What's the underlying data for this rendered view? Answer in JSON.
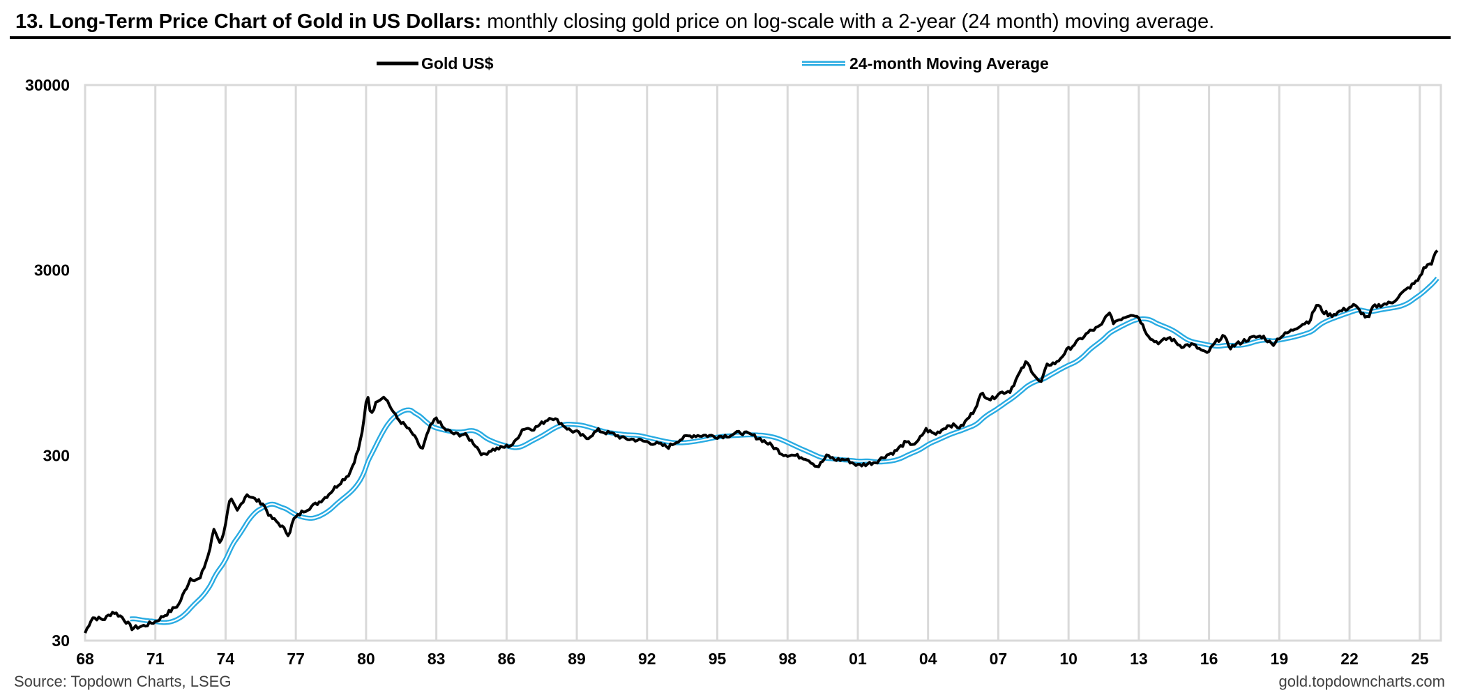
{
  "header": {
    "title_bold": "13. Long-Term Price Chart of Gold in US Dollars:",
    "title_rest": " monthly closing gold price on log-scale with a 2-year (24 month) moving average."
  },
  "footer": {
    "source": "Source: Topdown Charts, LSEG",
    "website": "gold.topdowncharts.com"
  },
  "chart_data": {
    "type": "line",
    "title": "13. Long-Term Price Chart of Gold in US Dollars: monthly closing gold price on log-scale with a 2-year (24 month) moving average.",
    "xlabel": "",
    "ylabel": "",
    "y_scale": "log",
    "ylim": [
      30,
      30000
    ],
    "xlim": [
      1968,
      2025.9
    ],
    "grid": "vertical lines every 3 years",
    "legend_position": "top",
    "y_ticks": [
      "30",
      "300",
      "3000",
      "30000"
    ],
    "x_ticks": [
      "68",
      "71",
      "74",
      "77",
      "80",
      "83",
      "86",
      "89",
      "92",
      "95",
      "98",
      "01",
      "04",
      "07",
      "10",
      "13",
      "16",
      "19",
      "22",
      "25"
    ],
    "colors": {
      "gold": "#000000",
      "moving_average": "#29abe2"
    },
    "series": [
      {
        "name": "Gold US$",
        "points": [
          [
            1968.0,
            33
          ],
          [
            1968.3,
            40
          ],
          [
            1968.8,
            39
          ],
          [
            1969.2,
            43
          ],
          [
            1969.6,
            40
          ],
          [
            1970.0,
            35
          ],
          [
            1970.5,
            36
          ],
          [
            1971.0,
            38
          ],
          [
            1971.5,
            42
          ],
          [
            1972.0,
            47
          ],
          [
            1972.5,
            65
          ],
          [
            1972.9,
            64
          ],
          [
            1973.3,
            90
          ],
          [
            1973.5,
            120
          ],
          [
            1973.8,
            100
          ],
          [
            1974.0,
            130
          ],
          [
            1974.2,
            175
          ],
          [
            1974.5,
            150
          ],
          [
            1974.9,
            186
          ],
          [
            1975.2,
            175
          ],
          [
            1975.6,
            165
          ],
          [
            1975.9,
            140
          ],
          [
            1976.3,
            128
          ],
          [
            1976.7,
            112
          ],
          [
            1976.9,
            135
          ],
          [
            1977.3,
            150
          ],
          [
            1977.9,
            165
          ],
          [
            1978.3,
            180
          ],
          [
            1978.9,
            215
          ],
          [
            1979.3,
            240
          ],
          [
            1979.7,
            330
          ],
          [
            1979.9,
            450
          ],
          [
            1980.05,
            650
          ],
          [
            1980.2,
            500
          ],
          [
            1980.5,
            600
          ],
          [
            1980.8,
            630
          ],
          [
            1981.0,
            560
          ],
          [
            1981.3,
            480
          ],
          [
            1981.7,
            430
          ],
          [
            1982.0,
            390
          ],
          [
            1982.4,
            320
          ],
          [
            1982.7,
            420
          ],
          [
            1983.0,
            480
          ],
          [
            1983.3,
            420
          ],
          [
            1983.8,
            390
          ],
          [
            1984.2,
            390
          ],
          [
            1984.6,
            350
          ],
          [
            1985.0,
            300
          ],
          [
            1985.3,
            320
          ],
          [
            1985.8,
            330
          ],
          [
            1986.3,
            345
          ],
          [
            1986.7,
            420
          ],
          [
            1987.2,
            420
          ],
          [
            1987.9,
            485
          ],
          [
            1988.3,
            450
          ],
          [
            1988.7,
            410
          ],
          [
            1989.0,
            400
          ],
          [
            1989.4,
            370
          ],
          [
            1989.9,
            410
          ],
          [
            1990.2,
            400
          ],
          [
            1990.6,
            390
          ],
          [
            1991.0,
            370
          ],
          [
            1991.5,
            365
          ],
          [
            1992.0,
            355
          ],
          [
            1992.5,
            345
          ],
          [
            1992.9,
            333
          ],
          [
            1993.3,
            360
          ],
          [
            1993.7,
            380
          ],
          [
            1994.0,
            385
          ],
          [
            1994.5,
            385
          ],
          [
            1995.0,
            380
          ],
          [
            1995.5,
            385
          ],
          [
            1996.0,
            400
          ],
          [
            1996.5,
            385
          ],
          [
            1996.9,
            365
          ],
          [
            1997.3,
            340
          ],
          [
            1997.8,
            305
          ],
          [
            1998.3,
            300
          ],
          [
            1998.8,
            290
          ],
          [
            1999.3,
            260
          ],
          [
            1999.7,
            300
          ],
          [
            2000.0,
            285
          ],
          [
            2000.5,
            285
          ],
          [
            2001.0,
            265
          ],
          [
            2001.4,
            270
          ],
          [
            2001.8,
            278
          ],
          [
            2002.2,
            300
          ],
          [
            2002.6,
            315
          ],
          [
            2003.0,
            350
          ],
          [
            2003.5,
            346
          ],
          [
            2003.9,
            415
          ],
          [
            2004.3,
            390
          ],
          [
            2004.9,
            440
          ],
          [
            2005.4,
            425
          ],
          [
            2005.9,
            510
          ],
          [
            2006.3,
            650
          ],
          [
            2006.7,
            600
          ],
          [
            2007.0,
            650
          ],
          [
            2007.5,
            670
          ],
          [
            2007.9,
            830
          ],
          [
            2008.2,
            960
          ],
          [
            2008.8,
            730
          ],
          [
            2009.1,
            930
          ],
          [
            2009.5,
            950
          ],
          [
            2009.9,
            1100
          ],
          [
            2010.4,
            1240
          ],
          [
            2010.9,
            1400
          ],
          [
            2011.4,
            1500
          ],
          [
            2011.7,
            1800
          ],
          [
            2011.9,
            1570
          ],
          [
            2012.3,
            1660
          ],
          [
            2012.7,
            1750
          ],
          [
            2013.0,
            1670
          ],
          [
            2013.3,
            1400
          ],
          [
            2013.6,
            1250
          ],
          [
            2013.9,
            1220
          ],
          [
            2014.3,
            1300
          ],
          [
            2014.8,
            1170
          ],
          [
            2015.3,
            1190
          ],
          [
            2015.9,
            1060
          ],
          [
            2016.3,
            1230
          ],
          [
            2016.6,
            1330
          ],
          [
            2016.9,
            1150
          ],
          [
            2017.5,
            1250
          ],
          [
            2017.9,
            1300
          ],
          [
            2018.3,
            1320
          ],
          [
            2018.7,
            1190
          ],
          [
            2019.0,
            1300
          ],
          [
            2019.5,
            1410
          ],
          [
            2019.9,
            1520
          ],
          [
            2020.3,
            1600
          ],
          [
            2020.6,
            1970
          ],
          [
            2020.9,
            1780
          ],
          [
            2021.2,
            1710
          ],
          [
            2021.6,
            1800
          ],
          [
            2022.2,
            1940
          ],
          [
            2022.8,
            1630
          ],
          [
            2023.0,
            1900
          ],
          [
            2023.4,
            1960
          ],
          [
            2023.8,
            2000
          ],
          [
            2024.2,
            2230
          ],
          [
            2024.6,
            2450
          ],
          [
            2024.9,
            2630
          ],
          [
            2025.2,
            3100
          ],
          [
            2025.5,
            3300
          ],
          [
            2025.75,
            3850
          ],
          [
            2025.83,
            4000
          ]
        ]
      },
      {
        "name": "24-month Moving Average",
        "derived_from": "Gold US$ (24-month trailing mean)"
      }
    ]
  }
}
